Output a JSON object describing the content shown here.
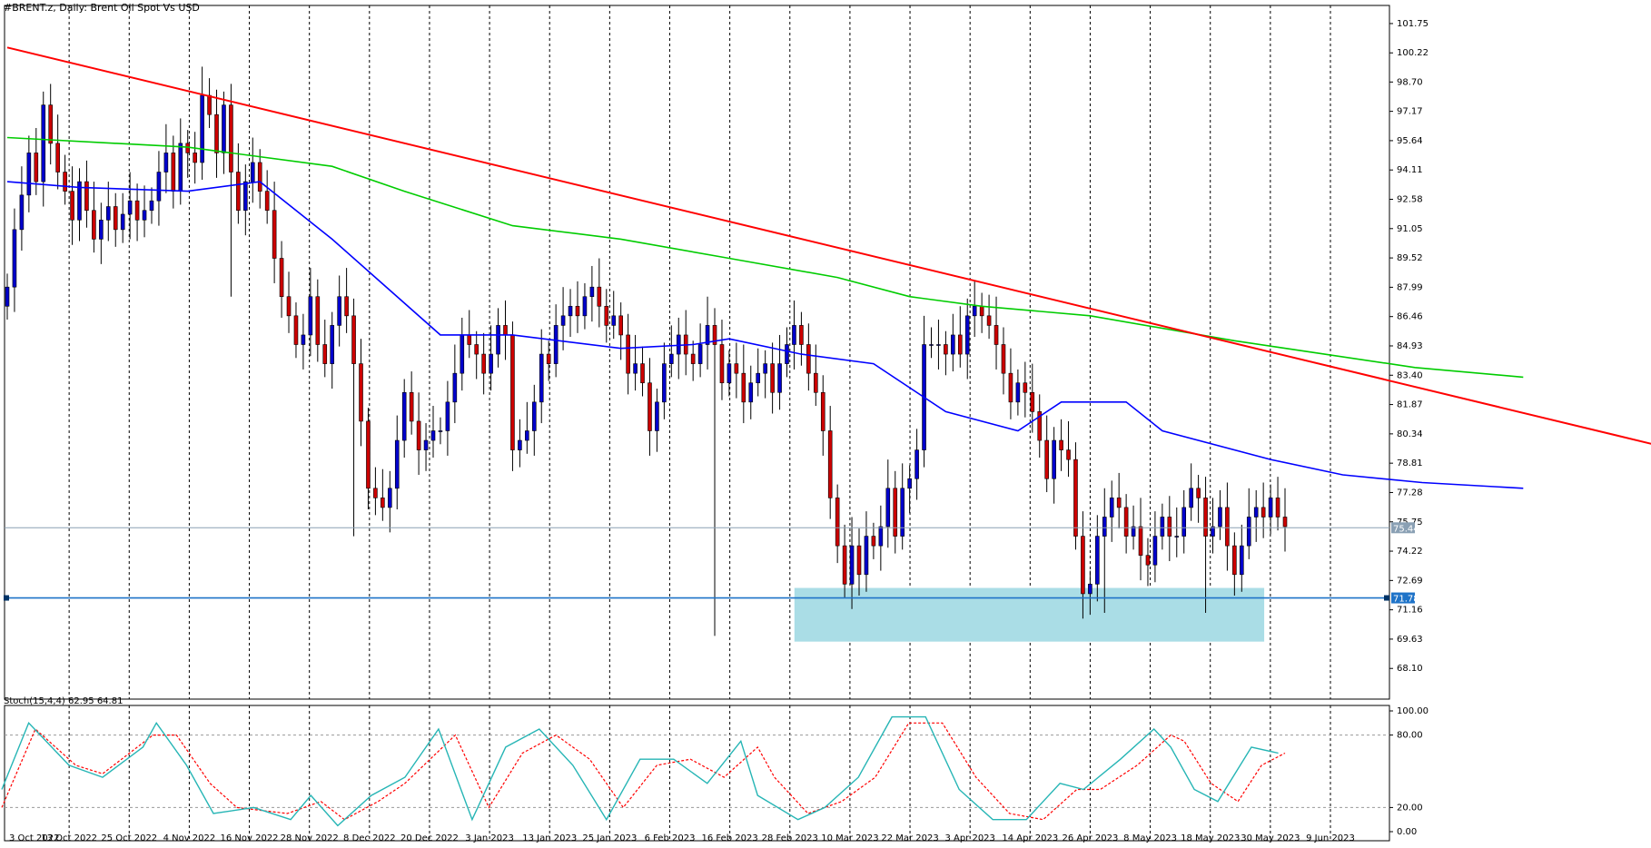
{
  "header": {
    "symbol": "#BRENT.z, Daily:  Brent Oil Spot Vs USD"
  },
  "indicator": {
    "label": "Stoch(15,4,4) 62.95 64.81"
  },
  "colors": {
    "bull_candle": "#0000cc",
    "bear_candle": "#cc0000",
    "trendline": "#ff0000",
    "sma_fast": "#0000ff",
    "sma_slow": "#00cc00",
    "support_line": "#1e73c8",
    "zone": "#aadde6",
    "stoch_main": "#26b5b5",
    "stoch_signal": "#ff0000"
  },
  "chart_data": [
    {
      "type": "candlestick",
      "title": "#BRENT.z, Daily:  Brent Oil Spot Vs USD",
      "ylim": [
        66.5,
        102.6
      ],
      "y_ticks": [
        "101.75",
        "100.22",
        "98.70",
        "97.17",
        "95.64",
        "94.11",
        "92.58",
        "91.05",
        "89.52",
        "87.99",
        "86.46",
        "84.93",
        "83.40",
        "81.87",
        "80.34",
        "78.81",
        "77.28",
        "75.75",
        "74.22",
        "72.69",
        "71.16",
        "69.63",
        "68.10"
      ],
      "x_ticks": [
        "3 Oct 2022",
        "13 Oct 2022",
        "25 Oct 2022",
        "4 Nov 2022",
        "16 Nov 2022",
        "28 Nov 2022",
        "8 Dec 2022",
        "20 Dec 2022",
        "3 Jan 2023",
        "13 Jan 2023",
        "25 Jan 2023",
        "6 Feb 2023",
        "16 Feb 2023",
        "28 Feb 2023",
        "10 Mar 2023",
        "22 Mar 2023",
        "3 Apr 2023",
        "14 Apr 2023",
        "26 Apr 2023",
        "8 May 2023",
        "18 May 2023",
        "30 May 2023",
        "9 Jun 2023"
      ],
      "current_price": "75.44",
      "support_price": "71.78",
      "support_zone": [
        69.5,
        72.3
      ],
      "trendline": [
        [
          0,
          100.5
        ],
        [
          250,
          77.8
        ]
      ],
      "close": [
        88.0,
        91.0,
        92.8,
        95.0,
        93.5,
        97.5,
        95.5,
        94.0,
        93.0,
        91.5,
        93.5,
        92.0,
        90.5,
        91.5,
        92.2,
        91.0,
        91.8,
        92.5,
        91.5,
        92.0,
        92.5,
        94.0,
        95.0,
        93.0,
        95.5,
        95.0,
        94.5,
        98.0,
        97.0,
        95.0,
        97.5,
        94.0,
        92.0,
        93.5,
        94.5,
        93.0,
        92.0,
        89.5,
        87.5,
        86.5,
        85.0,
        85.5,
        87.5,
        85.0,
        84.0,
        86.0,
        87.5,
        86.5,
        84.0,
        81.0,
        77.5,
        77.0,
        76.5,
        77.5,
        80.0,
        82.5,
        81.0,
        79.5,
        80.0,
        80.5,
        80.5,
        82.0,
        83.5,
        85.5,
        85.0,
        84.5,
        83.5,
        84.5,
        86.0,
        85.5,
        79.5,
        80.0,
        80.5,
        82.0,
        84.5,
        84.0,
        86.0,
        86.5,
        87.0,
        86.5,
        87.5,
        88.0,
        87.0,
        86.0,
        86.5,
        85.5,
        83.5,
        84.0,
        83.0,
        80.5,
        82.0,
        84.0,
        84.5,
        85.5,
        84.5,
        84.0,
        85.0,
        86.0,
        85.0,
        83.0,
        84.0,
        83.5,
        82.0,
        83.0,
        83.5,
        84.0,
        82.5,
        84.0,
        85.0,
        86.0,
        85.0,
        83.5,
        82.5,
        80.5,
        77.0,
        74.5,
        72.5,
        74.5,
        73.0,
        75.0,
        74.5,
        75.5,
        77.5,
        75.0,
        77.5,
        78.0,
        79.5,
        85.0,
        85.0,
        85.0,
        84.5,
        85.5,
        84.5,
        86.5,
        87.0,
        86.5,
        86.0,
        85.0,
        83.5,
        82.0,
        83.0,
        82.5,
        81.5,
        80.0,
        78.0,
        80.0,
        79.5,
        79.0,
        75.0,
        72.0,
        72.5,
        75.0,
        76.0,
        77.0,
        76.5,
        75.0,
        75.5,
        74.0,
        73.5,
        75.0,
        76.0,
        75.0,
        75.0,
        76.5,
        77.5,
        77.0,
        75.0,
        75.5,
        76.5,
        74.5,
        73.0,
        74.5,
        76.0,
        76.5,
        76.0,
        77.0,
        76.0,
        75.5
      ],
      "low_spikes": [
        [
          31,
          87.5
        ],
        [
          48,
          75.0
        ],
        [
          98,
          69.8
        ],
        [
          152,
          71.0
        ],
        [
          166,
          71.0
        ],
        [
          204,
          73.5
        ]
      ],
      "sma_fast": [
        [
          0,
          93.5
        ],
        [
          10,
          93.2
        ],
        [
          25,
          93.0
        ],
        [
          35,
          93.5
        ],
        [
          45,
          90.5
        ],
        [
          60,
          85.5
        ],
        [
          70,
          85.5
        ],
        [
          85,
          84.8
        ],
        [
          95,
          85.0
        ],
        [
          100,
          85.3
        ],
        [
          110,
          84.5
        ],
        [
          120,
          84.0
        ],
        [
          130,
          81.5
        ],
        [
          140,
          80.5
        ],
        [
          146,
          82.0
        ],
        [
          155,
          82.0
        ],
        [
          160,
          80.5
        ],
        [
          175,
          79.0
        ],
        [
          185,
          78.2
        ],
        [
          196,
          77.8
        ],
        [
          210,
          77.5
        ]
      ],
      "sma_slow": [
        [
          0,
          95.8
        ],
        [
          25,
          95.3
        ],
        [
          45,
          94.3
        ],
        [
          55,
          93.0
        ],
        [
          70,
          91.2
        ],
        [
          85,
          90.5
        ],
        [
          100,
          89.5
        ],
        [
          115,
          88.5
        ],
        [
          125,
          87.5
        ],
        [
          135,
          87.0
        ],
        [
          150,
          86.5
        ],
        [
          170,
          85.2
        ],
        [
          195,
          83.8
        ],
        [
          210,
          83.3
        ]
      ]
    },
    {
      "type": "line",
      "title": "Stoch(15,4,4) 62.95 64.81",
      "ylim": [
        0,
        100
      ],
      "y_ticks": [
        "100.00",
        "80.00",
        "20.00",
        "0.00"
      ],
      "levels": [
        80,
        20
      ],
      "series": [
        {
          "name": "62.95",
          "values": [
            [
              0,
              35
            ],
            [
              8,
              90
            ],
            [
              20,
              55
            ],
            [
              30,
              45
            ],
            [
              42,
              70
            ],
            [
              46,
              90
            ],
            [
              55,
              55
            ],
            [
              63,
              15
            ],
            [
              75,
              20
            ],
            [
              86,
              10
            ],
            [
              92,
              30
            ],
            [
              100,
              5
            ],
            [
              110,
              30
            ],
            [
              120,
              45
            ],
            [
              130,
              85
            ],
            [
              140,
              10
            ],
            [
              150,
              70
            ],
            [
              160,
              85
            ],
            [
              170,
              55
            ],
            [
              180,
              10
            ],
            [
              190,
              60
            ],
            [
              200,
              60
            ],
            [
              210,
              40
            ],
            [
              220,
              75
            ],
            [
              225,
              30
            ],
            [
              237,
              10
            ],
            [
              245,
              20
            ],
            [
              255,
              45
            ],
            [
              265,
              95
            ],
            [
              275,
              95
            ],
            [
              285,
              35
            ],
            [
              295,
              10
            ],
            [
              305,
              10
            ],
            [
              315,
              40
            ],
            [
              322,
              35
            ],
            [
              333,
              60
            ],
            [
              343,
              85
            ],
            [
              348,
              70
            ],
            [
              355,
              35
            ],
            [
              362,
              25
            ],
            [
              372,
              70
            ],
            [
              380,
              65
            ]
          ]
        },
        {
          "name": "64.81",
          "values": [
            [
              0,
              20
            ],
            [
              10,
              85
            ],
            [
              22,
              55
            ],
            [
              30,
              48
            ],
            [
              45,
              80
            ],
            [
              52,
              80
            ],
            [
              62,
              40
            ],
            [
              70,
              20
            ],
            [
              85,
              15
            ],
            [
              95,
              25
            ],
            [
              102,
              10
            ],
            [
              112,
              25
            ],
            [
              120,
              40
            ],
            [
              135,
              80
            ],
            [
              145,
              20
            ],
            [
              155,
              65
            ],
            [
              165,
              80
            ],
            [
              175,
              60
            ],
            [
              185,
              20
            ],
            [
              195,
              55
            ],
            [
              205,
              60
            ],
            [
              215,
              45
            ],
            [
              225,
              70
            ],
            [
              230,
              45
            ],
            [
              240,
              15
            ],
            [
              250,
              25
            ],
            [
              260,
              45
            ],
            [
              270,
              90
            ],
            [
              280,
              90
            ],
            [
              290,
              45
            ],
            [
              300,
              15
            ],
            [
              310,
              10
            ],
            [
              320,
              35
            ],
            [
              327,
              35
            ],
            [
              338,
              55
            ],
            [
              348,
              80
            ],
            [
              352,
              75
            ],
            [
              360,
              40
            ],
            [
              368,
              25
            ],
            [
              375,
              55
            ],
            [
              382,
              65
            ]
          ]
        }
      ]
    }
  ]
}
